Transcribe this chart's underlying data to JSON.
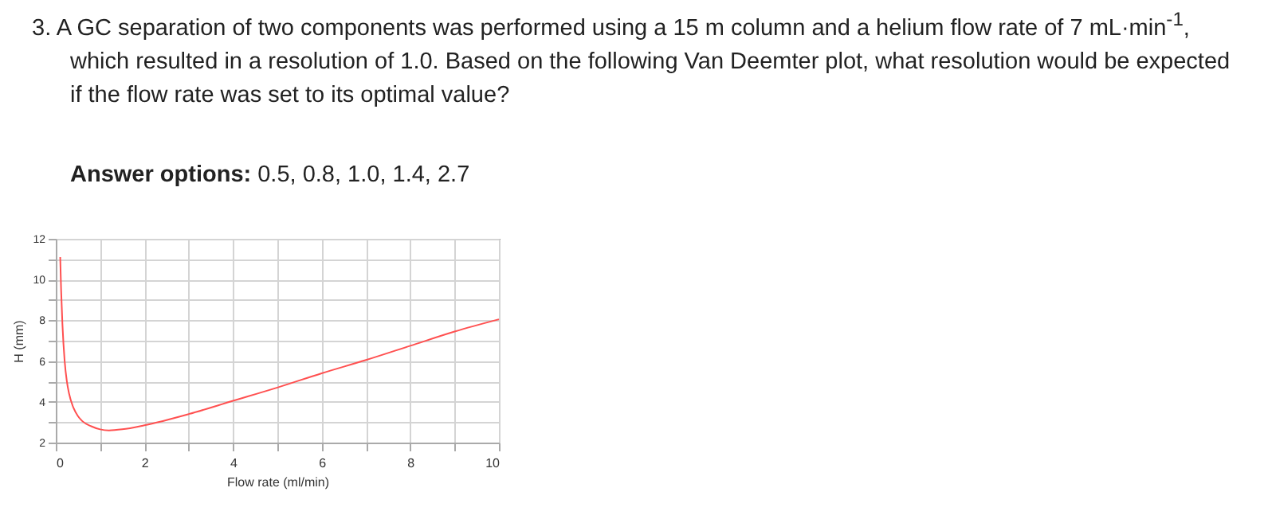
{
  "chart_data": {
    "type": "line",
    "title": "3. A GC separation of two components was performed using a 15 m column and a helium flow rate of 7 mL·min$^{-1}$, which resulted in a resolution of 1.0. Based on the following Van Deemter plot, what resolution would be expected if the flow rate was set to its optimal value?",
    "subtitle": "Answer options: 0.5, 0.8, 1.0, 1.4, 2.7",
    "xlabel": "Flow rate (ml/min)",
    "ylabel": "H (mm)",
    "x": [
      0.1,
      0.12,
      0.15,
      0.2,
      0.25,
      0.3,
      0.4,
      0.5,
      0.6,
      0.8,
      1.0,
      1.2,
      1.5,
      2,
      3,
      4,
      5,
      6,
      7,
      8,
      9,
      10
    ],
    "series": [
      {
        "color": "#ff5050",
        "values": [
          11.1,
          9.5,
          7.8,
          6.0,
          5.0,
          4.4,
          3.7,
          3.3,
          3.05,
          2.8,
          2.65,
          2.6,
          2.65,
          2.85,
          3.4,
          4.05,
          4.7,
          5.4,
          6.05,
          6.75,
          7.45,
          8.05
        ]
      }
    ],
    "xlim": [
      0,
      10
    ],
    "xticks": [
      0,
      {
        "value": 1,
        "label": null
      },
      2,
      {
        "value": 3,
        "label": null
      },
      4,
      {
        "value": 5,
        "label": null
      },
      6,
      {
        "value": 7,
        "label": null
      },
      8,
      {
        "value": 9,
        "label": null
      },
      10
    ],
    "ylim": [
      2,
      12
    ],
    "yticks": [
      2,
      {
        "value": 3,
        "label": null
      },
      4,
      {
        "value": 5,
        "label": null
      },
      6,
      {
        "value": 7,
        "label": null
      },
      8,
      {
        "value": 9,
        "label": null
      },
      10,
      {
        "value": 11,
        "label": null
      },
      12
    ],
    "grid": true,
    "marker": "none",
    "line_style": "solid",
    "legend": false
  }
}
